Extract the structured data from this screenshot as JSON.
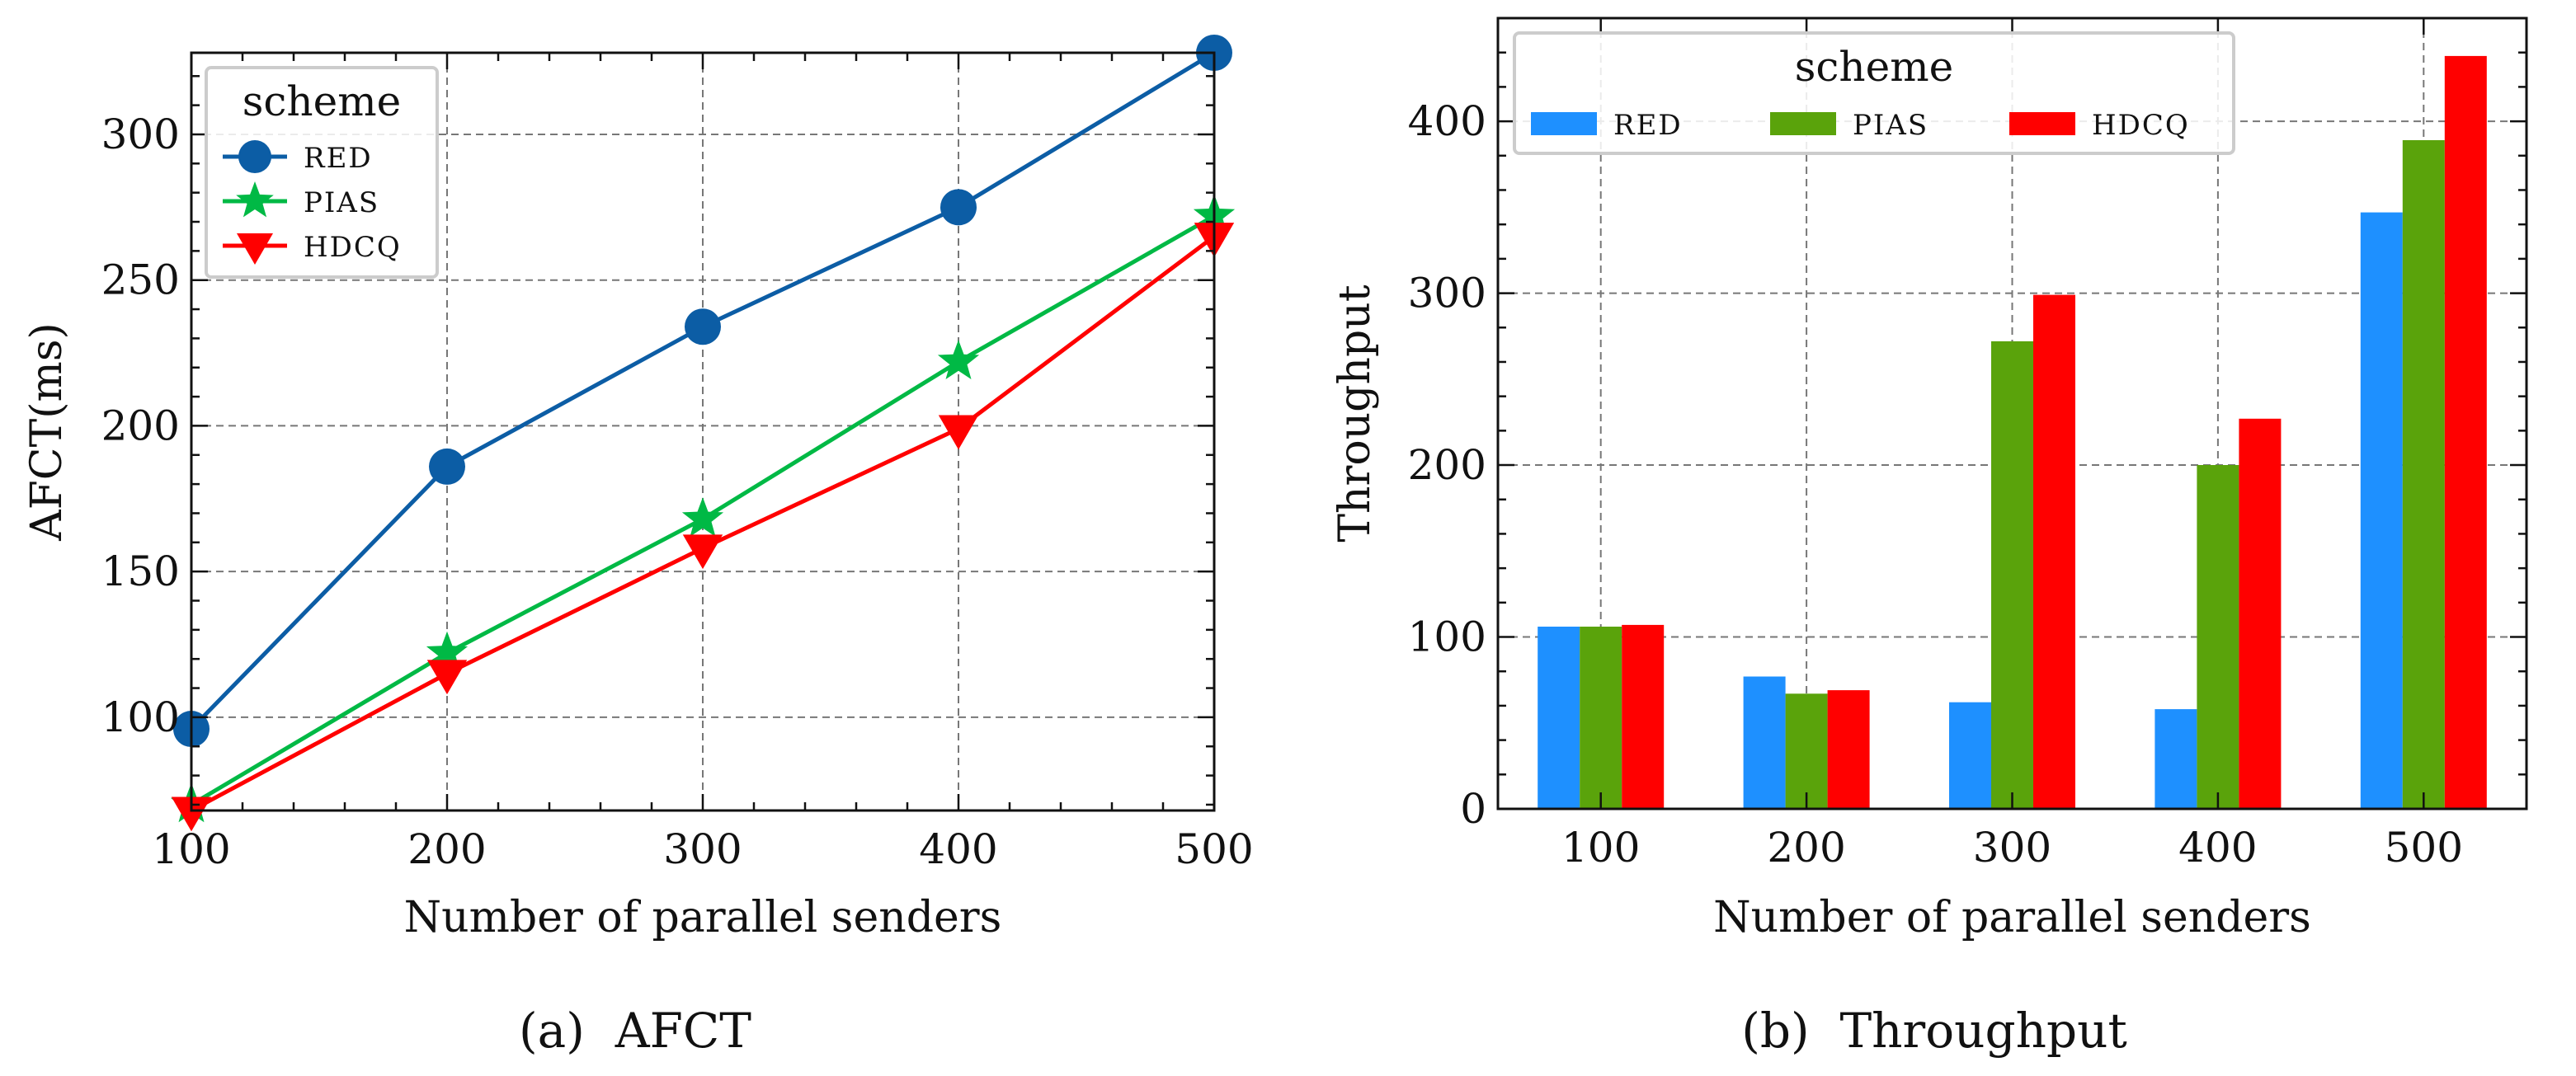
{
  "chart_data": [
    {
      "type": "line",
      "caption": "(a)  AFCT",
      "xlabel": "Number of parallel senders",
      "ylabel": "AFCT(ms)",
      "x": [
        100,
        200,
        300,
        400,
        500
      ],
      "xlim": [
        100,
        500
      ],
      "ylim": [
        68,
        328
      ],
      "xticks": [
        100,
        200,
        300,
        400,
        500
      ],
      "yticks": [
        100,
        150,
        200,
        250,
        300
      ],
      "grid": true,
      "legend": {
        "title": "scheme",
        "position": "top-left"
      },
      "series": [
        {
          "name": "RED",
          "color": "#0c5da5",
          "marker": "circle",
          "values": [
            96,
            186,
            234,
            275,
            328
          ]
        },
        {
          "name": "PIAS",
          "color": "#00b945",
          "marker": "star",
          "values": [
            70,
            122,
            168,
            222,
            272
          ]
        },
        {
          "name": "HDCQ",
          "color": "#ff0000",
          "marker": "triangle-down",
          "values": [
            68,
            115,
            158,
            199,
            265
          ]
        }
      ]
    },
    {
      "type": "bar",
      "caption": "(b)  Throughput",
      "xlabel": "Number of parallel senders",
      "ylabel": "Throughput",
      "categories": [
        "100",
        "200",
        "300",
        "400",
        "500"
      ],
      "ylim": [
        0,
        460
      ],
      "yticks": [
        0,
        100,
        200,
        300,
        400
      ],
      "grid": true,
      "legend": {
        "title": "scheme",
        "position": "top-left",
        "columns": 3
      },
      "series": [
        {
          "name": "RED",
          "color": "#1e90ff",
          "values": [
            106,
            77,
            62,
            58,
            347
          ]
        },
        {
          "name": "PIAS",
          "color": "#5aa30b",
          "values": [
            106,
            67,
            272,
            200,
            389
          ]
        },
        {
          "name": "HDCQ",
          "color": "#ff0000",
          "values": [
            107,
            69,
            299,
            227,
            438
          ]
        }
      ]
    }
  ]
}
